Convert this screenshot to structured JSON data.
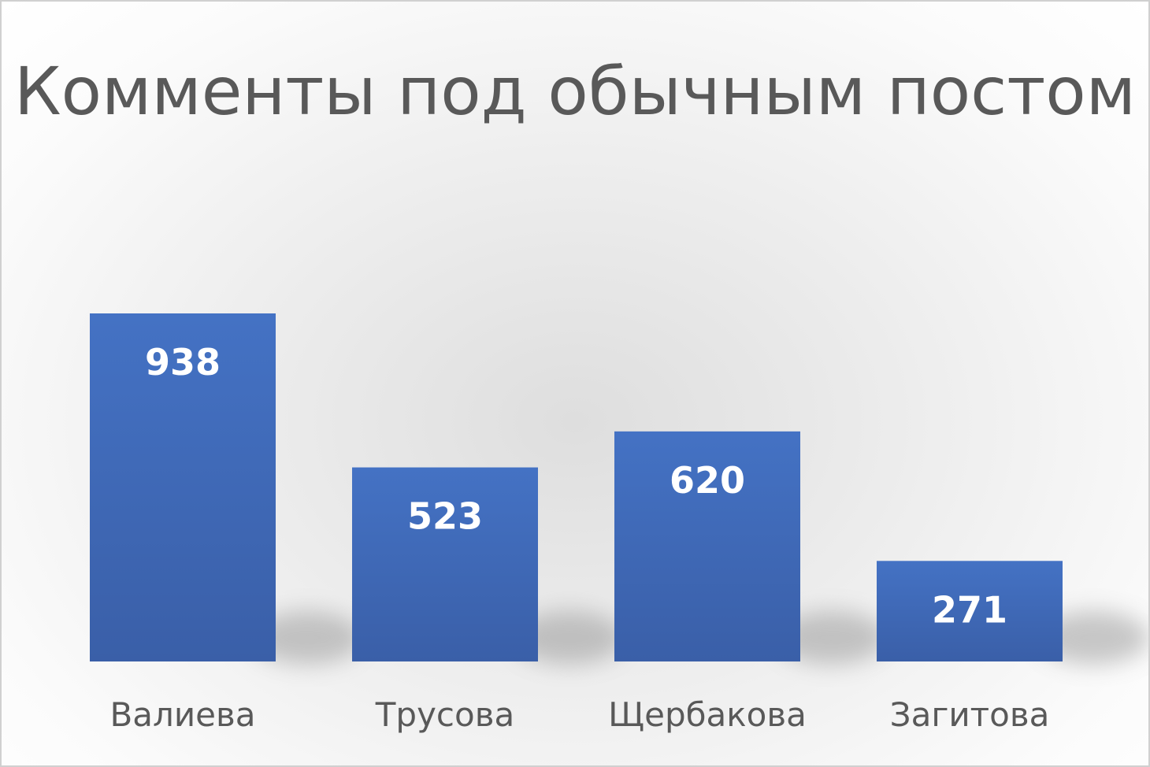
{
  "chart_data": {
    "type": "bar",
    "title": "Комменты под обычным постом",
    "categories": [
      "Валиева",
      "Трусова",
      "Щербакова",
      "Загитова"
    ],
    "values": [
      938,
      523,
      620,
      271
    ],
    "data_labels": [
      "938",
      "523",
      "620",
      "271"
    ],
    "ylim": [
      0,
      938
    ],
    "grid": false,
    "legend": "none",
    "bar_color": "#4472C4",
    "bar_color_dark": "#3A5FA8",
    "title_color": "#595959",
    "label_color": "#595959"
  }
}
